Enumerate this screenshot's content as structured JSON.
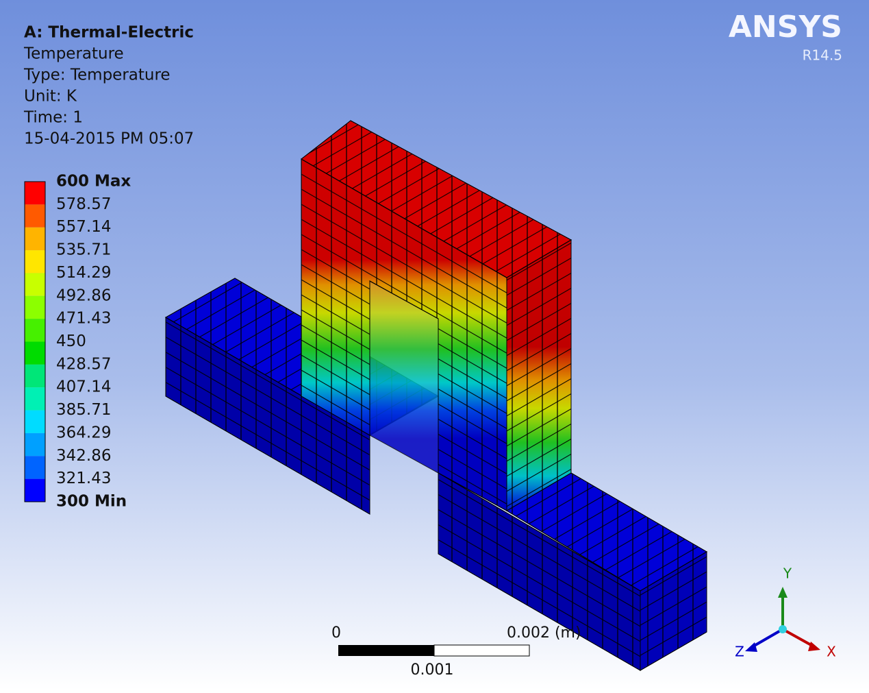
{
  "header": {
    "title": "A: Thermal-Electric",
    "lines": [
      "Temperature",
      "Type: Temperature",
      "Unit: K",
      "Time: 1",
      "15-04-2015 PM 05:07"
    ]
  },
  "brand": {
    "name": "ANSYS",
    "version": "R14.5"
  },
  "legend": {
    "labels": [
      "600 Max",
      "578.57",
      "557.14",
      "535.71",
      "514.29",
      "492.86",
      "471.43",
      "450",
      "428.57",
      "407.14",
      "385.71",
      "364.29",
      "342.86",
      "321.43",
      "300 Min"
    ],
    "colors": [
      "#ff0000",
      "#ff5a00",
      "#ffb400",
      "#ffe600",
      "#c8ff00",
      "#8cff00",
      "#46f000",
      "#00dc00",
      "#00e678",
      "#00f0b4",
      "#00dcff",
      "#00a0ff",
      "#0064ff",
      "#0000ff"
    ]
  },
  "scale_bar": {
    "start": "0",
    "end": "0.002 (m)",
    "mid": "0.001"
  },
  "triad": {
    "x": "X",
    "y": "Y",
    "z": "Z"
  }
}
